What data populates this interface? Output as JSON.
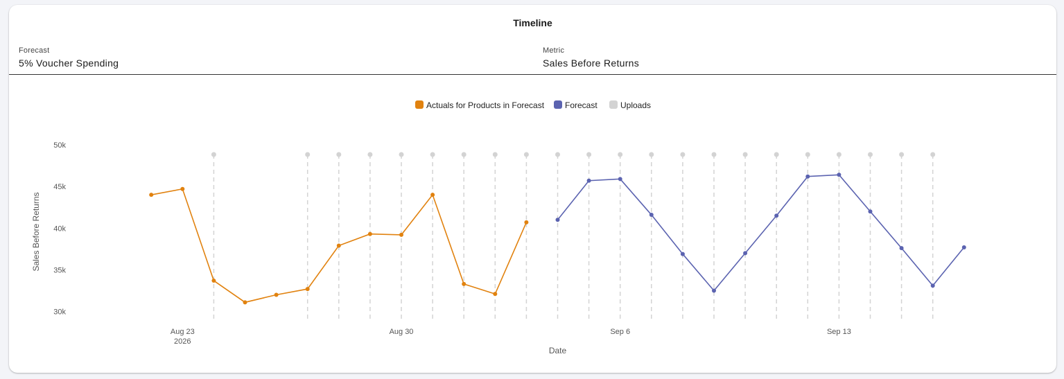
{
  "title": "Timeline",
  "forecast_field": {
    "label": "Forecast",
    "value": "5% Voucher Spending"
  },
  "metric_field": {
    "label": "Metric",
    "value": "Sales Before Returns"
  },
  "colors": {
    "actuals": "#e1820f",
    "forecast": "#5b63b0",
    "uploads": "#d3d3d3"
  },
  "chart_data": {
    "type": "line",
    "xlabel": "Date",
    "ylabel": "Sales Before Returns",
    "ylim": [
      28800,
      50000
    ],
    "yticks": [
      30000,
      35000,
      40000,
      45000,
      50000
    ],
    "ytick_labels": [
      "30k",
      "35k",
      "40k",
      "45k",
      "50k"
    ],
    "xlim": [
      "2026-08-20",
      "2026-09-19"
    ],
    "xticks": [
      {
        "date": "2026-08-23",
        "label": "Aug 23",
        "sublabel": "2026"
      },
      {
        "date": "2026-08-30",
        "label": "Aug 30",
        "sublabel": ""
      },
      {
        "date": "2026-09-06",
        "label": "Sep 6",
        "sublabel": ""
      },
      {
        "date": "2026-09-13",
        "label": "Sep 13",
        "sublabel": ""
      }
    ],
    "legend": [
      "Actuals for Products in Forecast",
      "Forecast",
      "Uploads"
    ],
    "legend_position": "top-center",
    "series": [
      {
        "name": "Actuals for Products in Forecast",
        "points": [
          {
            "x": "2026-08-22",
            "y": 44000
          },
          {
            "x": "2026-08-23",
            "y": 44700
          },
          {
            "x": "2026-08-24",
            "y": 33700
          },
          {
            "x": "2026-08-25",
            "y": 31100
          },
          {
            "x": "2026-08-26",
            "y": 32000
          },
          {
            "x": "2026-08-27",
            "y": 32700
          },
          {
            "x": "2026-08-28",
            "y": 37900
          },
          {
            "x": "2026-08-29",
            "y": 39300
          },
          {
            "x": "2026-08-30",
            "y": 39200
          },
          {
            "x": "2026-08-31",
            "y": 44000
          },
          {
            "x": "2026-09-01",
            "y": 33300
          },
          {
            "x": "2026-09-02",
            "y": 32100
          },
          {
            "x": "2026-09-03",
            "y": 40700
          }
        ]
      },
      {
        "name": "Forecast",
        "points": [
          {
            "x": "2026-09-04",
            "y": 41000
          },
          {
            "x": "2026-09-05",
            "y": 45700
          },
          {
            "x": "2026-09-06",
            "y": 45900
          },
          {
            "x": "2026-09-07",
            "y": 41600
          },
          {
            "x": "2026-09-08",
            "y": 36900
          },
          {
            "x": "2026-09-09",
            "y": 32500
          },
          {
            "x": "2026-09-10",
            "y": 37000
          },
          {
            "x": "2026-09-11",
            "y": 41500
          },
          {
            "x": "2026-09-12",
            "y": 46200
          },
          {
            "x": "2026-09-13",
            "y": 46400
          },
          {
            "x": "2026-09-14",
            "y": 42000
          },
          {
            "x": "2026-09-15",
            "y": 37600
          },
          {
            "x": "2026-09-16",
            "y": 33100
          },
          {
            "x": "2026-09-17",
            "y": 37700
          }
        ]
      }
    ],
    "uploads": [
      "2026-08-24",
      "2026-08-27",
      "2026-08-28",
      "2026-08-29",
      "2026-08-30",
      "2026-08-31",
      "2026-09-01",
      "2026-09-02",
      "2026-09-03",
      "2026-09-04",
      "2026-09-05",
      "2026-09-06",
      "2026-09-07",
      "2026-09-08",
      "2026-09-09",
      "2026-09-10",
      "2026-09-11",
      "2026-09-12",
      "2026-09-13",
      "2026-09-14",
      "2026-09-15",
      "2026-09-16"
    ]
  }
}
